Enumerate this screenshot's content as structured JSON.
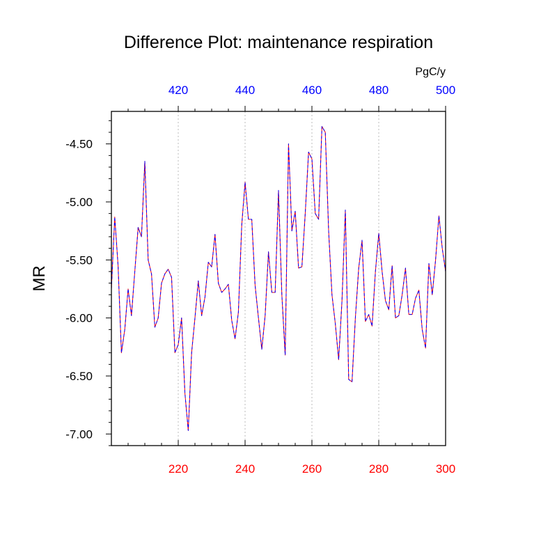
{
  "chart_data": {
    "type": "line",
    "title": "Difference Plot: maintenance respiration",
    "units_label": "PgC/y",
    "ylabel": "MR",
    "xlim": [
      200,
      300
    ],
    "ylim": [
      -7.1,
      -4.22
    ],
    "x_bottom_ticks": [
      220,
      240,
      260,
      280,
      300
    ],
    "x_top_ticks": [
      420,
      440,
      460,
      480,
      500
    ],
    "y_ticks": [
      "-4.50",
      "-5.00",
      "-5.50",
      "-6.00",
      "-6.50",
      "-7.00"
    ],
    "y_tick_values": [
      -4.5,
      -5.0,
      -5.5,
      -6.0,
      -6.5,
      -7.0
    ],
    "colors": {
      "bottom_axis": "#ff0000",
      "top_axis": "#0000ff",
      "series_a": "#ff0000",
      "series_b": "#0000ff",
      "grid": "#bbbbbb"
    },
    "series": [
      {
        "name": "difference",
        "x_start": 200,
        "x_step": 1,
        "values": [
          -5.75,
          -5.13,
          -5.55,
          -6.3,
          -6.1,
          -5.75,
          -5.98,
          -5.6,
          -5.22,
          -5.3,
          -4.65,
          -5.5,
          -5.62,
          -6.08,
          -6.0,
          -5.7,
          -5.62,
          -5.58,
          -5.65,
          -6.3,
          -6.23,
          -6.0,
          -6.65,
          -6.97,
          -6.3,
          -6.0,
          -5.68,
          -5.98,
          -5.82,
          -5.52,
          -5.56,
          -5.28,
          -5.7,
          -5.78,
          -5.75,
          -5.71,
          -6.02,
          -6.18,
          -5.95,
          -5.2,
          -4.83,
          -5.15,
          -5.15,
          -5.72,
          -6.0,
          -6.27,
          -5.98,
          -5.43,
          -5.78,
          -5.78,
          -4.9,
          -5.8,
          -6.32,
          -4.5,
          -5.25,
          -5.08,
          -5.57,
          -5.56,
          -5.1,
          -4.57,
          -4.63,
          -5.1,
          -5.15,
          -4.35,
          -4.4,
          -5.25,
          -5.8,
          -6.05,
          -6.36,
          -5.85,
          -5.07,
          -6.53,
          -6.55,
          -6.0,
          -5.57,
          -5.33,
          -6.03,
          -5.97,
          -6.07,
          -5.6,
          -5.27,
          -5.6,
          -5.85,
          -5.93,
          -5.55,
          -6.0,
          -5.98,
          -5.8,
          -5.57,
          -5.97,
          -5.97,
          -5.83,
          -5.76,
          -6.1,
          -6.26,
          -5.53,
          -5.8,
          -5.5,
          -5.12,
          -5.4,
          -5.6
        ]
      }
    ]
  }
}
